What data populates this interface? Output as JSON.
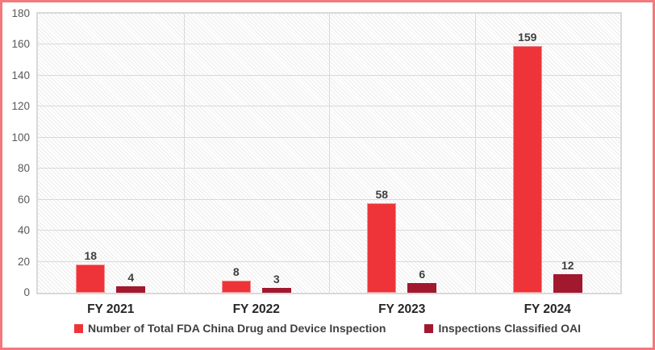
{
  "chart_data": {
    "type": "bar",
    "title": "",
    "xlabel": "",
    "ylabel": "",
    "categories": [
      "FY 2021",
      "FY 2022",
      "FY 2023",
      "FY 2024"
    ],
    "series": [
      {
        "name": "Number of Total FDA China Drug and Device Inspection",
        "values": [
          18,
          8,
          58,
          159
        ],
        "color": "#ee3438",
        "border_color": "#f58f90"
      },
      {
        "name": "Inspections Classified OAI",
        "values": [
          4,
          3,
          6,
          12
        ],
        "color": "#a2182f",
        "border_color": "#a2182f"
      }
    ],
    "ylim": [
      0,
      180
    ],
    "yticks": [
      0,
      20,
      40,
      60,
      80,
      100,
      120,
      140,
      160,
      180
    ],
    "grid": true,
    "legend_position": "bottom",
    "plot_background": "light-diagonal-hatch"
  },
  "colors": {
    "frame_border": "#f4797c",
    "gridline": "#d9d9d9",
    "axis_text": "#595959",
    "category_text": "#262626",
    "data_label_text": "#3f3f3f",
    "legend_text": "#404040"
  }
}
